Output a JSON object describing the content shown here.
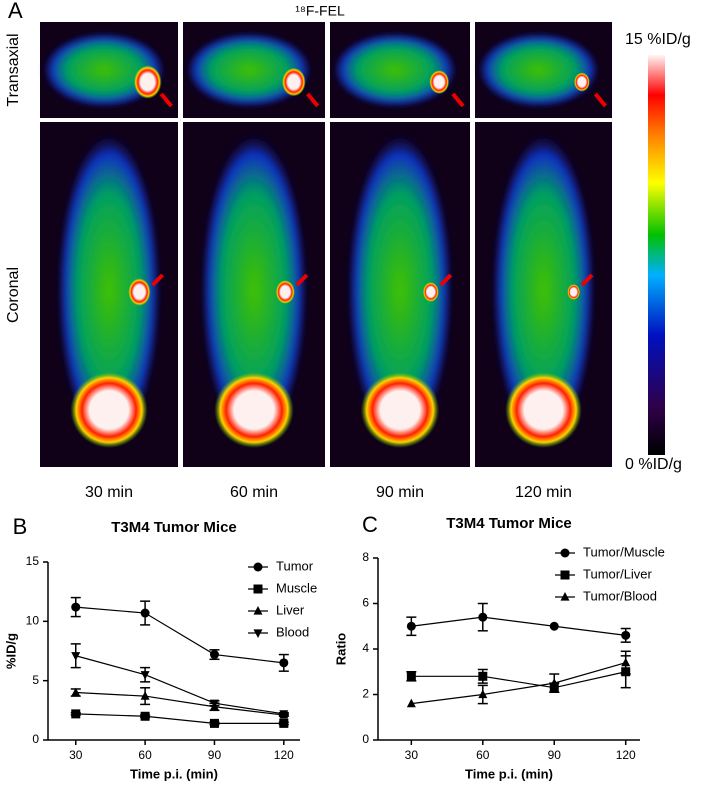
{
  "panel_a": {
    "label": "A",
    "tracer": "¹⁸F-FEL",
    "row_labels": [
      "Transaxial",
      "Coronal"
    ],
    "scale_max": "15 %ID/g",
    "scale_min": "0 %ID/g",
    "time_labels": [
      "30 min",
      "60 min",
      "90 min",
      "120 min"
    ]
  },
  "chart_data": [
    {
      "type": "line",
      "panel": "B",
      "title": "T3M4 Tumor Mice",
      "xlabel": "Time p.i. (min)",
      "ylabel": "%ID/g",
      "x": [
        30,
        60,
        90,
        120
      ],
      "xlim": [
        18,
        127
      ],
      "xticks": [
        30,
        60,
        90,
        120
      ],
      "ylim": [
        0,
        15
      ],
      "yticks": [
        0,
        5,
        10,
        15
      ],
      "series": [
        {
          "name": "Tumor",
          "marker": "circle",
          "color": "#000",
          "values": [
            11.2,
            10.7,
            7.2,
            6.5
          ],
          "errors": [
            0.8,
            1.0,
            0.4,
            0.7
          ]
        },
        {
          "name": "Muscle",
          "marker": "square",
          "color": "#000",
          "values": [
            2.2,
            2.0,
            1.4,
            1.4
          ],
          "errors": [
            0.1,
            0.1,
            0.1,
            0.1
          ]
        },
        {
          "name": "Liver",
          "marker": "triangle",
          "color": "#000",
          "values": [
            4.0,
            3.7,
            2.8,
            2.1
          ],
          "errors": [
            0.3,
            0.7,
            0.3,
            0.1
          ]
        },
        {
          "name": "Blood",
          "marker": "triangle-down",
          "color": "#000",
          "values": [
            7.1,
            5.5,
            3.1,
            2.2
          ],
          "errors": [
            1.0,
            0.6,
            0.2,
            0.1
          ]
        }
      ]
    },
    {
      "type": "line",
      "panel": "C",
      "title": "T3M4 Tumor Mice",
      "xlabel": "Time p.i. (min)",
      "ylabel": "Ratio",
      "x": [
        30,
        60,
        90,
        120
      ],
      "xlim": [
        16,
        126
      ],
      "xticks": [
        30,
        60,
        90,
        120
      ],
      "ylim": [
        0,
        8
      ],
      "yticks": [
        0,
        2,
        4,
        6,
        8
      ],
      "series": [
        {
          "name": "Tumor/Muscle",
          "marker": "circle",
          "color": "#000",
          "values": [
            5.0,
            5.4,
            5.0,
            4.6
          ],
          "errors": [
            0.4,
            0.6,
            null,
            0.3
          ]
        },
        {
          "name": "Tumor/Liver",
          "marker": "square",
          "color": "#000",
          "values": [
            2.8,
            2.8,
            2.3,
            3.0
          ],
          "errors": [
            0.2,
            0.3,
            0.2,
            0.7
          ]
        },
        {
          "name": "Tumor/Blood",
          "marker": "triangle",
          "color": "#000",
          "values": [
            1.6,
            2.0,
            2.5,
            3.4
          ],
          "errors": [
            null,
            0.4,
            0.4,
            0.5
          ]
        }
      ]
    }
  ]
}
